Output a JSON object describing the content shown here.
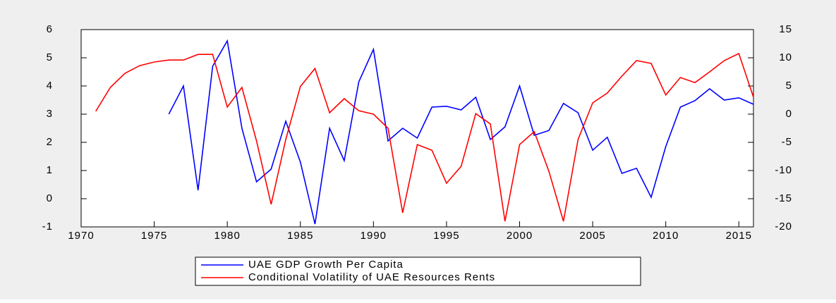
{
  "chart_data": {
    "type": "line",
    "x": [
      1971,
      1972,
      1973,
      1974,
      1975,
      1976,
      1977,
      1978,
      1979,
      1980,
      1981,
      1982,
      1983,
      1984,
      1985,
      1986,
      1987,
      1988,
      1989,
      1990,
      1991,
      1992,
      1993,
      1994,
      1995,
      1996,
      1997,
      1998,
      1999,
      2000,
      2001,
      2002,
      2003,
      2004,
      2005,
      2006,
      2007,
      2008,
      2009,
      2010,
      2011,
      2012,
      2013,
      2014,
      2015,
      2016
    ],
    "series": [
      {
        "name": "UAE GDP Growth Per Capita",
        "color": "#0000ff",
        "axis": "y",
        "values": [
          null,
          null,
          null,
          null,
          null,
          3.0,
          4.0,
          0.3,
          4.7,
          5.6,
          2.5,
          0.6,
          1.05,
          2.75,
          1.3,
          -0.9,
          2.5,
          1.35,
          4.15,
          5.3,
          2.05,
          2.5,
          2.15,
          3.25,
          3.28,
          3.15,
          3.6,
          2.1,
          2.55,
          4.0,
          2.25,
          2.42,
          3.38,
          3.05,
          1.72,
          2.18,
          0.9,
          1.08,
          0.05,
          1.85,
          3.25,
          3.48,
          3.9,
          3.5,
          3.58,
          3.35
        ]
      },
      {
        "name": "Conditional Volatility of UAE Resources Rents",
        "color": "#ff0000",
        "axis": "y2",
        "values": [
          0.5,
          4.75,
          7.25,
          8.6,
          9.25,
          9.6,
          9.6,
          10.6,
          10.6,
          1.25,
          4.75,
          -4.75,
          -16,
          -4.5,
          4.9,
          8.1,
          0.25,
          2.75,
          0.6,
          0,
          -2.5,
          -17.5,
          -5.4,
          -6.4,
          -12.25,
          -9.25,
          0.1,
          -1.75,
          -19,
          -5.4,
          -3.1,
          -10.1,
          -19,
          -4.5,
          2,
          3.75,
          6.75,
          9.5,
          9,
          3.4,
          6.5,
          5.6,
          7.5,
          9.5,
          10.75,
          3
        ]
      }
    ],
    "xlim": [
      1970,
      2016
    ],
    "xticks": [
      1970,
      1975,
      1980,
      1985,
      1990,
      1995,
      2000,
      2005,
      2010,
      2015
    ],
    "ylim": [
      -1,
      6
    ],
    "yticks": [
      -1,
      0,
      1,
      2,
      3,
      4,
      5,
      6
    ],
    "y2lim": [
      -20,
      15
    ],
    "y2ticks": [
      -20,
      -15,
      -10,
      -5,
      0,
      5,
      10,
      15
    ]
  }
}
